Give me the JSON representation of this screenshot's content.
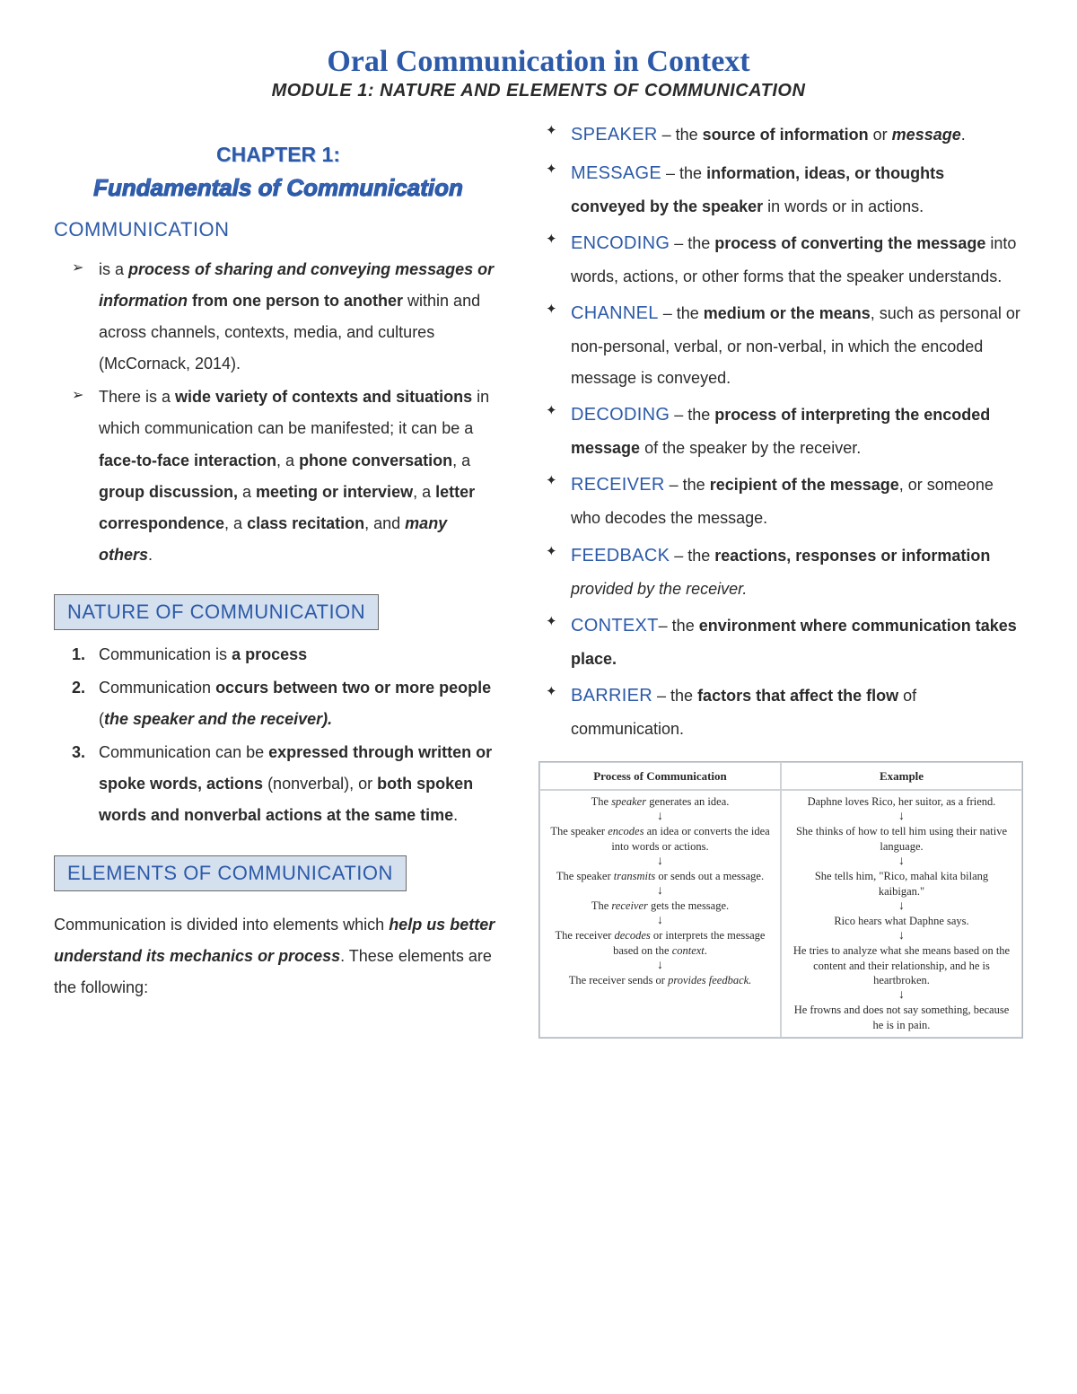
{
  "header": {
    "title": "Oral Communication in Context",
    "subtitle": "MODULE 1: NATURE AND ELEMENTS OF COMMUNICATION"
  },
  "colors": {
    "heading_blue": "#2c5aa8",
    "box_bg": "#d5e0ef",
    "box_border": "#6b6b6b",
    "table_border": "#aeb5bc",
    "body_text": "#2a2a2a"
  },
  "left": {
    "chapter_label": "CHAPTER 1:",
    "chapter_title": "Fundamentals of Communication",
    "communication_heading": "COMMUNICATION",
    "communication_items": [
      "is a <i class='emph'>process of sharing and conveying messages or information</i> <b>from one person to another</b> within and across channels, contexts, media, and cultures (McCornack, 2014).",
      "There is a <b>wide variety of contexts and situations</b> in which communication can be manifested; it can be a <b>face-to-face interaction</b>, a <b>phone conversation</b>, a <b>group discussion,</b> a <b>meeting or interview</b>, a <b>letter correspondence</b>, a <b>class recitation</b>, and <i class='emph'>many others</i>."
    ],
    "nature_heading": "NATURE OF COMMUNICATION",
    "nature_items": [
      "Communication is <b>a process</b>",
      "Communication <b>occurs between two or more people</b> (<i class='emph'>the speaker and the receiver).</i>",
      "Communication can be <b>expressed through written or spoke words, actions</b> (nonverbal), or <b>both spoken words and nonverbal actions at the same time</b>."
    ],
    "elements_heading": "ELEMENTS OF COMMUNICATION",
    "elements_para": "Communication is divided into elements which <i class='emph'>help us better understand its mechanics or process</i>. These elements are the following:"
  },
  "right": {
    "elements": [
      {
        "term": "SPEAKER",
        "def": " – the <b>source of information</b> or <i class='emph'>message</i>."
      },
      {
        "term": "MESSAGE",
        "def": " – the <b>information, ideas, or thoughts conveyed by the speaker</b> in words or in actions."
      },
      {
        "term": "ENCODING",
        "def": " – the <b>process of converting the message</b> into words, actions, or other forms that the speaker understands."
      },
      {
        "term": "CHANNEL",
        "def": " – the <b>medium or the means</b>, such as personal or non-personal, verbal, or non-verbal, in which the encoded message is conveyed."
      },
      {
        "term": "DECODING",
        "def": " – the <b>process of interpreting the encoded message</b> of the speaker by the receiver."
      },
      {
        "term": "RECEIVER",
        "def": " – the <b>recipient of the message</b>, or someone who decodes the message."
      },
      {
        "term": "FEEDBACK",
        "def": " – the <b>reactions, responses or information</b> <i>provided by the receiver.</i>"
      },
      {
        "term": "CONTEXT",
        "def": "– the <b>environment where communication takes place.</b>"
      },
      {
        "term": "BARRIER",
        "def": " – the <b>factors that affect the flow</b> of communication."
      }
    ],
    "table": {
      "headers": [
        "Process of Communication",
        "Example"
      ],
      "rows": [
        [
          "The <i>speaker</i> generates an idea.",
          "Daphne loves Rico, her suitor, as a friend."
        ],
        [
          "The speaker <i>encodes</i> an idea or converts the idea into words or actions.",
          "She thinks of how to tell him using their native language."
        ],
        [
          "The speaker <i>transmits</i> or sends out a message.",
          "She tells him, \"Rico, mahal kita bilang kaibigan.\""
        ],
        [
          "The <i>receiver</i> gets the message.",
          "Rico hears what Daphne says."
        ],
        [
          "The receiver <i>decodes</i> or interprets the message based on the <i>context</i>.",
          "He tries to analyze what she means based on the content and their relationship, and he is heartbroken."
        ],
        [
          "The receiver sends or <i>provides feedback.</i>",
          "He frowns and does not say something, because he is in pain."
        ]
      ]
    }
  }
}
